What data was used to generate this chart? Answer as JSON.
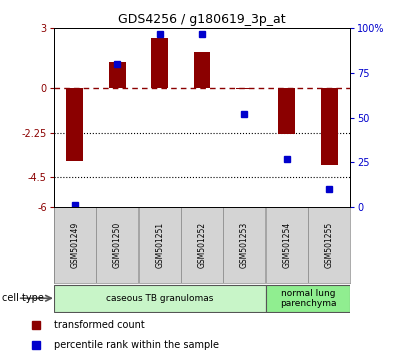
{
  "title": "GDS4256 / g180619_3p_at",
  "samples": [
    "GSM501249",
    "GSM501250",
    "GSM501251",
    "GSM501252",
    "GSM501253",
    "GSM501254",
    "GSM501255"
  ],
  "transformed_count": [
    -3.7,
    1.3,
    2.5,
    1.8,
    -0.05,
    -2.3,
    -3.9
  ],
  "percentile_rank": [
    1,
    80,
    97,
    97,
    52,
    27,
    10
  ],
  "ylim_left": [
    -6,
    3
  ],
  "ylim_right": [
    0,
    100
  ],
  "yticks_left": [
    3,
    0,
    -2.25,
    -4.5,
    -6
  ],
  "ytick_labels_left": [
    "3",
    "0",
    "-2.25",
    "-4.5",
    "-6"
  ],
  "yticks_right": [
    100,
    75,
    50,
    25,
    0
  ],
  "ytick_labels_right": [
    "100%",
    "75",
    "50",
    "25",
    "0"
  ],
  "hlines": [
    -2.25,
    -4.5
  ],
  "bar_color": "#8B0000",
  "dot_color": "#0000CC",
  "cell_groups": [
    {
      "xmin": -0.5,
      "xmax": 4.5,
      "color": "#c8f5c8",
      "label": "caseous TB granulomas"
    },
    {
      "xmin": 4.5,
      "xmax": 6.5,
      "color": "#90EE90",
      "label": "normal lung\nparenchyma"
    }
  ],
  "legend_items": [
    {
      "color": "#8B0000",
      "label": "transformed count"
    },
    {
      "color": "#0000CC",
      "label": "percentile rank within the sample"
    }
  ],
  "cell_type_label": "cell type",
  "bg_color": "#ffffff"
}
